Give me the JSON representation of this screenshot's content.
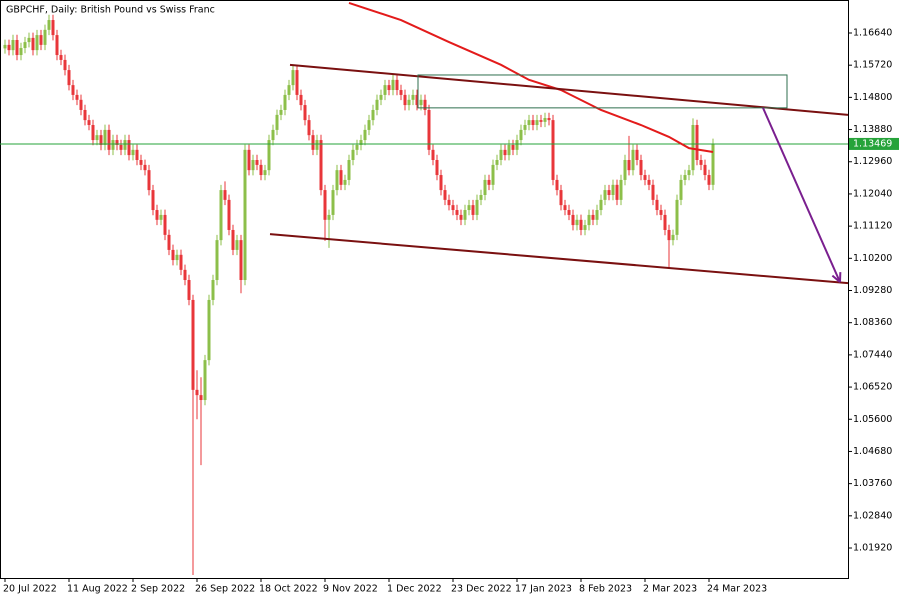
{
  "chart_data": {
    "type": "candlestick",
    "title": "GBPCHF, Daily:  British Pound vs Swiss Franc",
    "categories": [
      "20 Jul 2022",
      null,
      null,
      null,
      null,
      null,
      null,
      null,
      null,
      null,
      null,
      null,
      null,
      null,
      null,
      null,
      "11 Aug 2022",
      null,
      null,
      null,
      null,
      null,
      null,
      null,
      null,
      null,
      null,
      null,
      null,
      null,
      null,
      null,
      "2 Sep 2022",
      null,
      null,
      null,
      null,
      null,
      null,
      null,
      null,
      null,
      null,
      null,
      null,
      null,
      null,
      null,
      "26 Sep 2022",
      null,
      null,
      null,
      null,
      null,
      null,
      null,
      null,
      null,
      null,
      null,
      null,
      null,
      null,
      null,
      "18 Oct 2022",
      null,
      null,
      null,
      null,
      null,
      null,
      null,
      null,
      null,
      null,
      null,
      null,
      null,
      null,
      null,
      "9 Nov 2022",
      null,
      null,
      null,
      null,
      null,
      null,
      null,
      null,
      null,
      null,
      null,
      null,
      null,
      null,
      null,
      "1 Dec 2022",
      null,
      null,
      null,
      null,
      null,
      null,
      null,
      null,
      null,
      null,
      null,
      null,
      null,
      null,
      null,
      "23 Dec 2022",
      null,
      null,
      null,
      null,
      null,
      null,
      null,
      null,
      null,
      null,
      null,
      null,
      null,
      null,
      null,
      "17 Jan 2023",
      null,
      null,
      null,
      null,
      null,
      null,
      null,
      null,
      null,
      null,
      null,
      null,
      null,
      null,
      null,
      "8 Feb 2023",
      null,
      null,
      null,
      null,
      null,
      null,
      null,
      null,
      null,
      null,
      null,
      null,
      null,
      null,
      null,
      "2 Mar 2023",
      null,
      null,
      null,
      null,
      null,
      null,
      null,
      null,
      null,
      null,
      null,
      null,
      null,
      null,
      null,
      "24 Mar 2023",
      null
    ],
    "candles": [
      [
        1.162,
        1.1645,
        1.1605,
        1.163
      ],
      [
        1.163,
        1.1645,
        1.16,
        1.1615
      ],
      [
        1.1615,
        1.1659,
        1.16,
        1.1644
      ],
      [
        1.1644,
        1.1659,
        1.1586,
        1.1601
      ],
      [
        1.1601,
        1.1636,
        1.1586,
        1.1621
      ],
      [
        1.1621,
        1.1653,
        1.1606,
        1.1638
      ],
      [
        1.1638,
        1.1665,
        1.1623,
        1.165
      ],
      [
        1.165,
        1.1665,
        1.16,
        1.1615
      ],
      [
        1.1615,
        1.1673,
        1.16,
        1.1658
      ],
      [
        1.1658,
        1.1673,
        1.1615,
        1.163
      ],
      [
        1.163,
        1.1688,
        1.1615,
        1.1673
      ],
      [
        1.1673,
        1.1716,
        1.1658,
        1.1701
      ],
      [
        1.1701,
        1.1716,
        1.1643,
        1.1658
      ],
      [
        1.1658,
        1.1673,
        1.1586,
        1.1601
      ],
      [
        1.1601,
        1.1616,
        1.1572,
        1.1587
      ],
      [
        1.1587,
        1.1602,
        1.1543,
        1.1558
      ],
      [
        1.1558,
        1.1573,
        1.15,
        1.1515
      ],
      [
        1.1515,
        1.153,
        1.1472,
        1.1487
      ],
      [
        1.1487,
        1.1502,
        1.1458,
        1.1473
      ],
      [
        1.1473,
        1.1488,
        1.1429,
        1.1444
      ],
      [
        1.1444,
        1.1459,
        1.14,
        1.1415
      ],
      [
        1.1415,
        1.143,
        1.1386,
        1.1401
      ],
      [
        1.1401,
        1.1416,
        1.1343,
        1.1358
      ],
      [
        1.1358,
        1.1387,
        1.1343,
        1.1372
      ],
      [
        1.1372,
        1.1387,
        1.1329,
        1.1344
      ],
      [
        1.1344,
        1.1402,
        1.1329,
        1.1387
      ],
      [
        1.1387,
        1.1402,
        1.1315,
        1.133
      ],
      [
        1.133,
        1.1373,
        1.1315,
        1.1358
      ],
      [
        1.1358,
        1.1373,
        1.1329,
        1.1344
      ],
      [
        1.1344,
        1.1359,
        1.1315,
        1.133
      ],
      [
        1.133,
        1.1373,
        1.1315,
        1.1358
      ],
      [
        1.1358,
        1.1373,
        1.13,
        1.1315
      ],
      [
        1.1315,
        1.1345,
        1.13,
        1.133
      ],
      [
        1.133,
        1.1345,
        1.1286,
        1.1301
      ],
      [
        1.1301,
        1.1316,
        1.1272,
        1.1287
      ],
      [
        1.1287,
        1.1302,
        1.1257,
        1.1272
      ],
      [
        1.1272,
        1.1287,
        1.12,
        1.1215
      ],
      [
        1.1215,
        1.123,
        1.1143,
        1.1158
      ],
      [
        1.1158,
        1.1173,
        1.1115,
        1.113
      ],
      [
        1.113,
        1.1159,
        1.1115,
        1.1144
      ],
      [
        1.1144,
        1.1159,
        1.1072,
        1.1087
      ],
      [
        1.1087,
        1.1102,
        1.1029,
        1.1044
      ],
      [
        1.1044,
        1.1059,
        1.1,
        1.1015
      ],
      [
        1.1015,
        1.1045,
        1.1,
        1.103
      ],
      [
        1.103,
        1.1045,
        1.0972,
        1.0987
      ],
      [
        1.0987,
        1.1002,
        1.0943,
        1.0958
      ],
      [
        1.0958,
        1.0973,
        1.0886,
        1.0901
      ],
      [
        1.0901,
        1.0916,
        1.0115,
        1.0644
      ],
      [
        1.0644,
        1.07,
        1.056,
        1.0629
      ],
      [
        1.0629,
        1.068,
        1.0429,
        1.0615
      ],
      [
        1.0615,
        1.0744,
        1.06,
        1.0729
      ],
      [
        1.0729,
        1.0916,
        1.0714,
        1.0901
      ],
      [
        1.0901,
        1.0973,
        1.0886,
        1.0958
      ],
      [
        1.0958,
        1.1087,
        1.0943,
        1.1072
      ],
      [
        1.1072,
        1.123,
        1.1057,
        1.1215
      ],
      [
        1.1215,
        1.124,
        1.1172,
        1.1187
      ],
      [
        1.1187,
        1.1202,
        1.1086,
        1.1101
      ],
      [
        1.1101,
        1.1116,
        1.1029,
        1.1044
      ],
      [
        1.1044,
        1.1087,
        1.1029,
        1.1072
      ],
      [
        1.1072,
        1.1087,
        1.092,
        1.0958
      ],
      [
        1.0958,
        1.1345,
        1.0943,
        1.133
      ],
      [
        1.133,
        1.1345,
        1.1257,
        1.1272
      ],
      [
        1.1272,
        1.1316,
        1.1257,
        1.1301
      ],
      [
        1.1301,
        1.1316,
        1.1272,
        1.1287
      ],
      [
        1.1287,
        1.1302,
        1.1243,
        1.1258
      ],
      [
        1.1258,
        1.1287,
        1.1243,
        1.1272
      ],
      [
        1.1272,
        1.1373,
        1.1257,
        1.1358
      ],
      [
        1.1358,
        1.1402,
        1.1343,
        1.1387
      ],
      [
        1.1387,
        1.1445,
        1.1372,
        1.143
      ],
      [
        1.143,
        1.1459,
        1.1415,
        1.1444
      ],
      [
        1.1444,
        1.1502,
        1.1429,
        1.1487
      ],
      [
        1.1487,
        1.153,
        1.1472,
        1.1515
      ],
      [
        1.1515,
        1.1573,
        1.15,
        1.1558
      ],
      [
        1.1558,
        1.1573,
        1.1472,
        1.1487
      ],
      [
        1.1487,
        1.1502,
        1.1443,
        1.1458
      ],
      [
        1.1458,
        1.1473,
        1.14,
        1.1415
      ],
      [
        1.1415,
        1.143,
        1.1357,
        1.1372
      ],
      [
        1.1372,
        1.1387,
        1.1315,
        1.133
      ],
      [
        1.133,
        1.1373,
        1.1315,
        1.1358
      ],
      [
        1.1358,
        1.1373,
        1.12,
        1.1215
      ],
      [
        1.1215,
        1.123,
        1.107,
        1.113
      ],
      [
        1.113,
        1.1159,
        1.105,
        1.1144
      ],
      [
        1.1144,
        1.123,
        1.1129,
        1.1215
      ],
      [
        1.1215,
        1.1287,
        1.12,
        1.1272
      ],
      [
        1.1272,
        1.1287,
        1.1215,
        1.123
      ],
      [
        1.123,
        1.1259,
        1.1215,
        1.1244
      ],
      [
        1.1244,
        1.1316,
        1.1229,
        1.1301
      ],
      [
        1.1301,
        1.1345,
        1.1286,
        1.133
      ],
      [
        1.133,
        1.1359,
        1.1315,
        1.1344
      ],
      [
        1.1344,
        1.1373,
        1.1329,
        1.1358
      ],
      [
        1.1358,
        1.1402,
        1.1343,
        1.1387
      ],
      [
        1.1387,
        1.143,
        1.1372,
        1.1415
      ],
      [
        1.1415,
        1.1459,
        1.14,
        1.1444
      ],
      [
        1.1444,
        1.1488,
        1.1429,
        1.1473
      ],
      [
        1.1473,
        1.1502,
        1.1458,
        1.1487
      ],
      [
        1.1487,
        1.153,
        1.1472,
        1.1515
      ],
      [
        1.1515,
        1.153,
        1.1486,
        1.1501
      ],
      [
        1.1501,
        1.1545,
        1.1486,
        1.153
      ],
      [
        1.153,
        1.1545,
        1.1486,
        1.1501
      ],
      [
        1.1501,
        1.1516,
        1.1472,
        1.1487
      ],
      [
        1.1487,
        1.1502,
        1.1443,
        1.1458
      ],
      [
        1.1458,
        1.1488,
        1.1443,
        1.1473
      ],
      [
        1.1473,
        1.1502,
        1.1458,
        1.1487
      ],
      [
        1.1487,
        1.1502,
        1.1443,
        1.1458
      ],
      [
        1.1458,
        1.1488,
        1.1443,
        1.1473
      ],
      [
        1.1473,
        1.1488,
        1.1429,
        1.1444
      ],
      [
        1.1444,
        1.1459,
        1.1315,
        1.133
      ],
      [
        1.133,
        1.1345,
        1.1286,
        1.1301
      ],
      [
        1.1301,
        1.1316,
        1.1243,
        1.1258
      ],
      [
        1.1258,
        1.1273,
        1.12,
        1.1215
      ],
      [
        1.1215,
        1.123,
        1.1172,
        1.1187
      ],
      [
        1.1187,
        1.1202,
        1.1157,
        1.1172
      ],
      [
        1.1172,
        1.1187,
        1.1143,
        1.1158
      ],
      [
        1.1158,
        1.1173,
        1.1129,
        1.1144
      ],
      [
        1.1144,
        1.1159,
        1.1115,
        1.113
      ],
      [
        1.113,
        1.1173,
        1.1115,
        1.1158
      ],
      [
        1.1158,
        1.1187,
        1.1143,
        1.1172
      ],
      [
        1.1172,
        1.1187,
        1.1129,
        1.1144
      ],
      [
        1.1144,
        1.1202,
        1.1129,
        1.1187
      ],
      [
        1.1187,
        1.1216,
        1.1172,
        1.1201
      ],
      [
        1.1201,
        1.1259,
        1.1186,
        1.1244
      ],
      [
        1.1244,
        1.1259,
        1.1215,
        1.123
      ],
      [
        1.123,
        1.1302,
        1.1215,
        1.1287
      ],
      [
        1.1287,
        1.1316,
        1.1272,
        1.1301
      ],
      [
        1.1301,
        1.1345,
        1.1286,
        1.133
      ],
      [
        1.133,
        1.1345,
        1.13,
        1.1315
      ],
      [
        1.1315,
        1.1359,
        1.13,
        1.1344
      ],
      [
        1.1344,
        1.1359,
        1.1315,
        1.133
      ],
      [
        1.133,
        1.1373,
        1.1315,
        1.1358
      ],
      [
        1.1358,
        1.1402,
        1.1343,
        1.1387
      ],
      [
        1.1387,
        1.1416,
        1.1372,
        1.1401
      ],
      [
        1.1401,
        1.143,
        1.1386,
        1.1415
      ],
      [
        1.1415,
        1.143,
        1.1386,
        1.1401
      ],
      [
        1.1401,
        1.143,
        1.1386,
        1.1415
      ],
      [
        1.1415,
        1.143,
        1.1395,
        1.141
      ],
      [
        1.141,
        1.1436,
        1.1395,
        1.1421
      ],
      [
        1.1421,
        1.1436,
        1.14,
        1.1415
      ],
      [
        1.1415,
        1.143,
        1.1229,
        1.1244
      ],
      [
        1.1244,
        1.1259,
        1.12,
        1.1215
      ],
      [
        1.1215,
        1.123,
        1.1157,
        1.1172
      ],
      [
        1.1172,
        1.1187,
        1.1143,
        1.1158
      ],
      [
        1.1158,
        1.1173,
        1.1129,
        1.1144
      ],
      [
        1.1144,
        1.1159,
        1.11,
        1.1115
      ],
      [
        1.1115,
        1.1145,
        1.11,
        1.113
      ],
      [
        1.113,
        1.1145,
        1.1086,
        1.1101
      ],
      [
        1.1101,
        1.113,
        1.1086,
        1.1115
      ],
      [
        1.1115,
        1.1159,
        1.11,
        1.1144
      ],
      [
        1.1144,
        1.1159,
        1.1115,
        1.113
      ],
      [
        1.113,
        1.1173,
        1.1115,
        1.1158
      ],
      [
        1.1158,
        1.1202,
        1.1143,
        1.1187
      ],
      [
        1.1187,
        1.123,
        1.1172,
        1.1215
      ],
      [
        1.1215,
        1.123,
        1.1186,
        1.1201
      ],
      [
        1.1201,
        1.1245,
        1.1186,
        1.123
      ],
      [
        1.123,
        1.1245,
        1.1172,
        1.1187
      ],
      [
        1.1187,
        1.1259,
        1.1172,
        1.1244
      ],
      [
        1.1244,
        1.1316,
        1.1229,
        1.1301
      ],
      [
        1.1301,
        1.137,
        1.1257,
        1.1272
      ],
      [
        1.1272,
        1.1345,
        1.1257,
        1.133
      ],
      [
        1.133,
        1.1345,
        1.1286,
        1.1301
      ],
      [
        1.1301,
        1.1316,
        1.1243,
        1.1258
      ],
      [
        1.1258,
        1.1273,
        1.1229,
        1.1244
      ],
      [
        1.1244,
        1.1259,
        1.1215,
        1.123
      ],
      [
        1.123,
        1.1245,
        1.1172,
        1.1187
      ],
      [
        1.1187,
        1.1202,
        1.1143,
        1.1158
      ],
      [
        1.1158,
        1.1173,
        1.1129,
        1.1144
      ],
      [
        1.1144,
        1.1159,
        1.1086,
        1.1101
      ],
      [
        1.1101,
        1.1116,
        1.099,
        1.1072
      ],
      [
        1.1072,
        1.1102,
        1.1057,
        1.1087
      ],
      [
        1.1087,
        1.1202,
        1.1072,
        1.1187
      ],
      [
        1.1187,
        1.1259,
        1.1172,
        1.1244
      ],
      [
        1.1244,
        1.1273,
        1.1229,
        1.1258
      ],
      [
        1.1258,
        1.1287,
        1.1243,
        1.1272
      ],
      [
        1.1272,
        1.142,
        1.1257,
        1.1401
      ],
      [
        1.1401,
        1.1416,
        1.1286,
        1.1301
      ],
      [
        1.1301,
        1.1316,
        1.1272,
        1.1287
      ],
      [
        1.1287,
        1.1302,
        1.1243,
        1.1258
      ],
      [
        1.1258,
        1.1273,
        1.1215,
        1.123
      ],
      [
        1.123,
        1.1362,
        1.1215,
        1.1347
      ]
    ],
    "bull_color": "#8cbf4a",
    "bear_color": "#e8363a",
    "xlim": [
      -1.25,
      210.75
    ],
    "ylim": [
      1.01063,
      1.17583
    ],
    "yticks": [
      {
        "value": 1.1664,
        "label": "1.16640"
      },
      {
        "value": 1.1572,
        "label": "1.15720"
      },
      {
        "value": 1.148,
        "label": "1.14800"
      },
      {
        "value": 1.1388,
        "label": "1.13880"
      },
      {
        "value": 1.1296,
        "label": "1.12960"
      },
      {
        "value": 1.1204,
        "label": "1.12040"
      },
      {
        "value": 1.1112,
        "label": "1.11120"
      },
      {
        "value": 1.102,
        "label": "1.10200"
      },
      {
        "value": 1.0928,
        "label": "1.09280"
      },
      {
        "value": 1.0836,
        "label": "1.08360"
      },
      {
        "value": 1.0744,
        "label": "1.07440"
      },
      {
        "value": 1.0652,
        "label": "1.06520"
      },
      {
        "value": 1.056,
        "label": "1.05600"
      },
      {
        "value": 1.0468,
        "label": "1.04680"
      },
      {
        "value": 1.0376,
        "label": "1.03760"
      },
      {
        "value": 1.0284,
        "label": "1.02840"
      },
      {
        "value": 1.0192,
        "label": "1.01920"
      }
    ],
    "current_price": 1.13469,
    "current_price_color": "#26a33a",
    "moving_average": {
      "color": "#e31b1b",
      "x": [
        86,
        99,
        111,
        124,
        131,
        139,
        149,
        159,
        166,
        171,
        177
      ],
      "values": [
        1.175,
        1.1701,
        1.1638,
        1.1573,
        1.153,
        1.1501,
        1.1444,
        1.1401,
        1.1367,
        1.1335,
        1.1324
      ]
    },
    "trend_lines": {
      "color": "#7a1010",
      "lines": [
        {
          "x": [
            71.25,
            210.75
          ],
          "values": [
            1.1573,
            1.143
          ]
        },
        {
          "x": [
            66.25,
            210.75
          ],
          "values": [
            1.1089,
            1.0949
          ]
        }
      ]
    },
    "rectangle": {
      "color": "#2e6e4e",
      "x": [
        103.25,
        195.5
      ],
      "values": [
        1.1544,
        1.145
      ]
    },
    "arrow": {
      "color": "#7a1f8f",
      "x": [
        189.5,
        208.75
      ],
      "values": [
        1.145,
        1.0952
      ]
    }
  }
}
